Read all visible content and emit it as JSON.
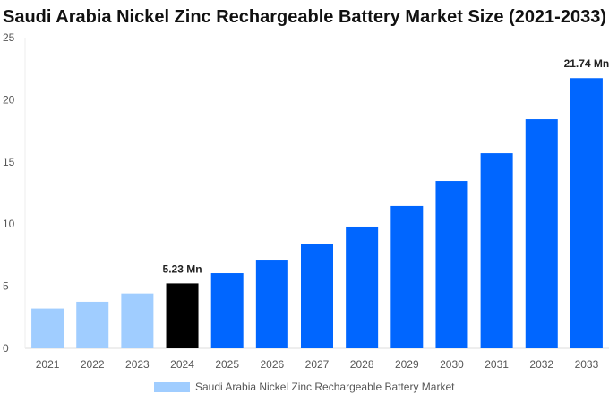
{
  "chart_data": {
    "type": "bar",
    "title": "Saudi Arabia Nickel Zinc Rechargeable Battery Market Size (2021-2033)",
    "categories": [
      "2021",
      "2022",
      "2023",
      "2024",
      "2025",
      "2026",
      "2027",
      "2028",
      "2029",
      "2030",
      "2031",
      "2032",
      "2033"
    ],
    "series": [
      {
        "name": "Saudi Arabia Nickel Zinc Rechargeable Battery Market",
        "values": [
          3.2,
          3.75,
          4.42,
          5.23,
          6.05,
          7.13,
          8.36,
          9.8,
          11.46,
          13.47,
          15.7,
          18.44,
          21.74
        ]
      }
    ],
    "data_labels": [
      {
        "index": 3,
        "text": "5.23 Mn"
      },
      {
        "index": 12,
        "text": "21.74 Mn"
      }
    ],
    "ylim": [
      0,
      25
    ],
    "yticks": [
      0,
      5,
      10,
      15,
      20,
      25
    ],
    "grid": false,
    "legend": "bottom",
    "colors": {
      "historical": "#a0cdff",
      "base_year": "#000000",
      "forecast": "#0066ff"
    }
  }
}
